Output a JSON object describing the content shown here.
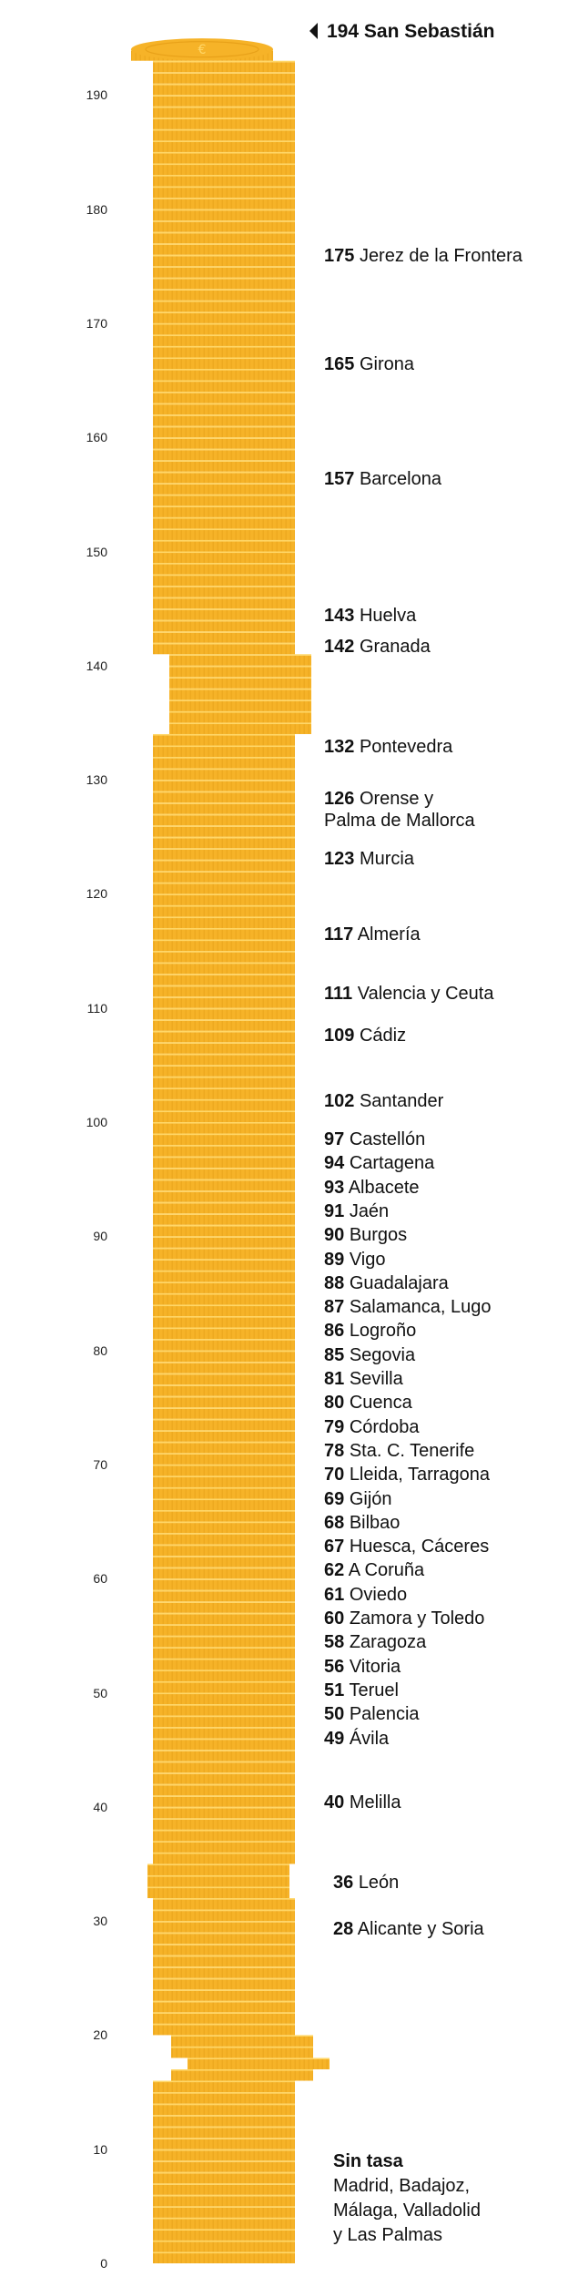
{
  "chart_data": {
    "type": "bar",
    "title": "",
    "xlabel": "",
    "ylabel": "",
    "ylim": [
      0,
      194
    ],
    "y_ticks": [
      "0",
      "10",
      "20",
      "30",
      "40",
      "50",
      "60",
      "70",
      "80",
      "90",
      "100",
      "110",
      "120",
      "130",
      "140",
      "150",
      "160",
      "170",
      "180",
      "190"
    ],
    "colors": {
      "coin": "#F6B328",
      "edge": "#FFD768",
      "shade": "#E29A12"
    },
    "points": [
      {
        "value": "194",
        "name": "San Sebastián"
      },
      {
        "value": "175",
        "name": "Jerez de la Frontera"
      },
      {
        "value": "165",
        "name": "Girona"
      },
      {
        "value": "157",
        "name": "Barcelona"
      },
      {
        "value": "143",
        "name": "Huelva"
      },
      {
        "value": "142",
        "name": "Granada"
      },
      {
        "value": "132",
        "name": "Pontevedra"
      },
      {
        "value": "126",
        "name": "Orense y",
        "name2": "Palma de Mallorca"
      },
      {
        "value": "123",
        "name": "Murcia"
      },
      {
        "value": "117",
        "name": "Almería"
      },
      {
        "value": "111",
        "name": "Valencia y Ceuta"
      },
      {
        "value": "109",
        "name": "Cádiz"
      },
      {
        "value": "102",
        "name": "Santander"
      },
      {
        "value": "97",
        "name": "Castellón"
      },
      {
        "value": "94",
        "name": "Cartagena"
      },
      {
        "value": "93",
        "name": "Albacete"
      },
      {
        "value": "91",
        "name": "Jaén"
      },
      {
        "value": "90",
        "name": "Burgos"
      },
      {
        "value": "89",
        "name": "Vigo"
      },
      {
        "value": "88",
        "name": "Guadalajara"
      },
      {
        "value": "87",
        "name": "Salamanca, Lugo"
      },
      {
        "value": "86",
        "name": "Logroño"
      },
      {
        "value": "85",
        "name": "Segovia"
      },
      {
        "value": "81",
        "name": "Sevilla"
      },
      {
        "value": "80",
        "name": "Cuenca"
      },
      {
        "value": "79",
        "name": "Córdoba"
      },
      {
        "value": "78",
        "name": "Sta. C. Tenerife"
      },
      {
        "value": "70",
        "name": "Lleida, Tarragona"
      },
      {
        "value": "69",
        "name": "Gijón"
      },
      {
        "value": "68",
        "name": "Bilbao"
      },
      {
        "value": "67",
        "name": "Huesca, Cáceres"
      },
      {
        "value": "62",
        "name": "A Coruña"
      },
      {
        "value": "61",
        "name": "Oviedo"
      },
      {
        "value": "60",
        "name": "Zamora y Toledo"
      },
      {
        "value": "58",
        "name": "Zaragoza"
      },
      {
        "value": "56",
        "name": "Vitoria"
      },
      {
        "value": "51",
        "name": "Teruel"
      },
      {
        "value": "50",
        "name": "Palencia"
      },
      {
        "value": "49",
        "name": "Ávila"
      },
      {
        "value": "40",
        "name": "Melilla"
      },
      {
        "value": "36",
        "name": "León"
      },
      {
        "value": "28",
        "name": "Alicante y Soria"
      }
    ],
    "no_tax": {
      "heading": "Sin tasa",
      "lines": [
        "Madrid, Badajoz,",
        "Málaga, Valladolid",
        "y Las Palmas"
      ]
    }
  }
}
